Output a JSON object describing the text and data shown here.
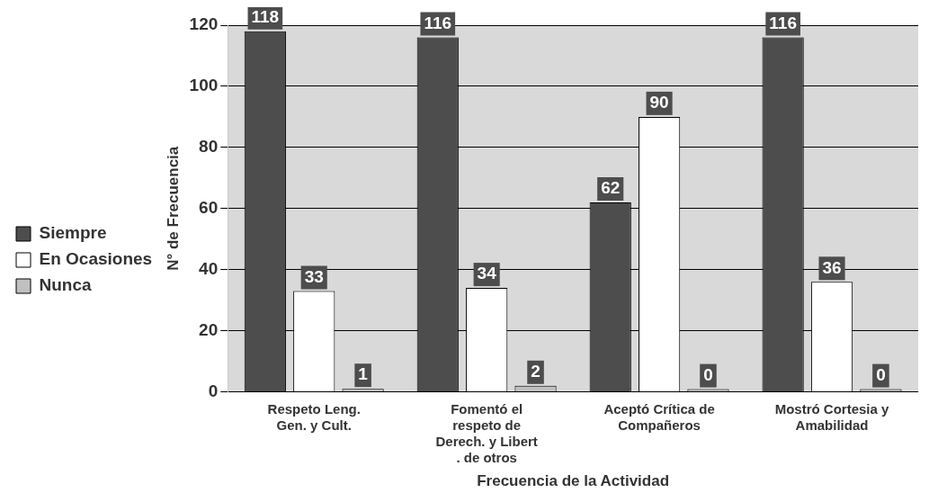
{
  "chart_data": {
    "type": "bar",
    "xlabel": "Frecuencia de la Actividad",
    "ylabel": "N° de Frecuencia",
    "categories": [
      "Respeto Leng. Gen. y Cult.",
      "Fomentó el respeto de Derech. y Libert . de otros",
      "Aceptó Crítica de Compañeros",
      "Mostró Cortesia y Amabilidad"
    ],
    "series": [
      {
        "name": "Siempre",
        "color": "#4d4d4d",
        "values": [
          118,
          116,
          62,
          116
        ]
      },
      {
        "name": "En Ocasiones",
        "color": "#ffffff",
        "values": [
          33,
          34,
          90,
          36
        ]
      },
      {
        "name": "Nunca",
        "color": "#c0c0c0",
        "values": [
          1,
          2,
          0,
          0
        ]
      }
    ],
    "ylim": [
      0,
      120
    ],
    "yticks": [
      0,
      20,
      40,
      60,
      80,
      100,
      120
    ],
    "grid": "y",
    "legend": "left",
    "data_labels": true
  }
}
